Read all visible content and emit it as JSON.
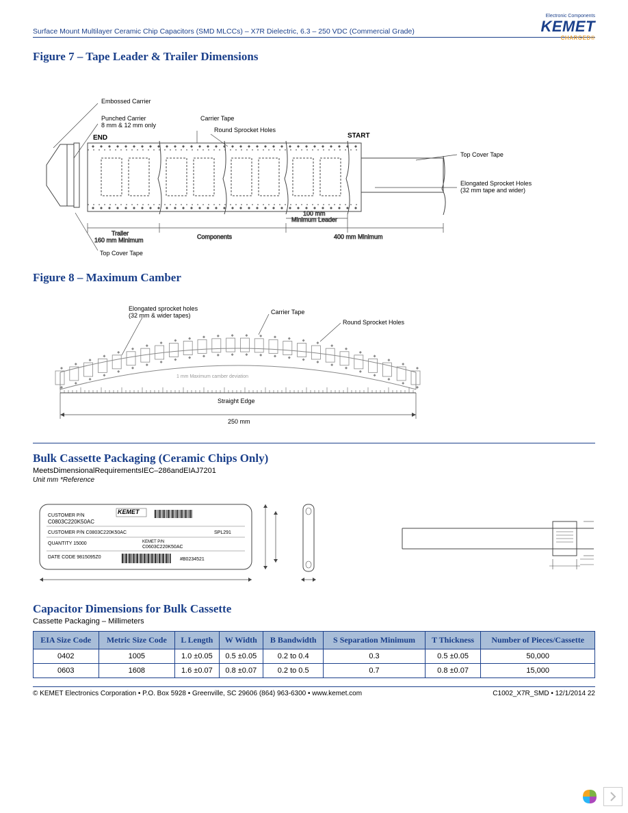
{
  "header": {
    "title": "Surface Mount Multilayer Ceramic Chip Capacitors (SMD MLCCs) – X7R Dielectric, 6.3 – 250 VDC (Commercial Grade)",
    "logo_tag": "Electronic Components",
    "logo_brand": "KEMET",
    "logo_sub": "CHARGED®"
  },
  "figure7": {
    "title": "Figure 7 – Tape Leader & Trailer Dimensions",
    "labels": {
      "embossed": "Embossed Carrier",
      "punched": "Punched Carrier\n8 mm & 12 mm only",
      "end": "END",
      "carrier_tape": "Carrier Tape",
      "round_sprocket": "Round Sprocket Holes",
      "start": "START",
      "top_cover": "Top Cover Tape",
      "elongated": "Elongated Sprocket Holes\n(32 mm tape and wider)",
      "trailer": "Trailer\n160 mm Minimum",
      "components": "Components",
      "leader100": "100 mm\nMinimum Leader",
      "leader400": "400 mm Minimum",
      "top_cover2": "Top Cover Tape"
    }
  },
  "figure8": {
    "title": "Figure 8 – Maximum Camber",
    "labels": {
      "elongated": "Elongated sprocket holes\n(32 mm & wider tapes)",
      "carrier": "Carrier Tape",
      "round": "Round Sprocket Holes",
      "camber": "1 mm Maximum camber deviation",
      "straight": "Straight Edge",
      "length": "250 mm"
    }
  },
  "bulk": {
    "title": "Bulk Cassette Packaging (Ceramic Chips Only)",
    "subtitle": "MeetsDimensionalRequirementsIEC–286andEIAJ7201",
    "unit": "Unit mm  *Reference",
    "cassette_labels": {
      "customer_pn": "CUSTOMER P/N",
      "pn1": "C0803C220K50AC",
      "cust_pn2": "CUSTOMER P/N C0803C220K50AC",
      "spl": "SPL291",
      "qty": "QUANTITY  15000",
      "kemet_pn_label": "KEMET P/N",
      "kemet_pn": "C0603C220K50AC",
      "date": "DATE CODE  9815095Z0",
      "lot": "#B0234521",
      "brand": "KEMET"
    }
  },
  "dims": {
    "title": "Capacitor Dimensions for Bulk Cassette",
    "subtitle": "Cassette Packaging – Millimeters",
    "columns": [
      "EIA Size Code",
      "Metric Size Code",
      "L Length",
      "W Width",
      "B Bandwidth",
      "S Separation Minimum",
      "T Thickness",
      "Number of Pieces/Cassette"
    ],
    "rows": [
      [
        "0402",
        "1005",
        "1.0 ±0.05",
        "0.5 ±0.05",
        "0.2 to 0.4",
        "0.3",
        "0.5 ±0.05",
        "50,000"
      ],
      [
        "0603",
        "1608",
        "1.6 ±0.07",
        "0.8 ±0.07",
        "0.2 to 0.5",
        "0.7",
        "0.8 ±0.07",
        "15,000"
      ]
    ]
  },
  "footer": {
    "left": "© KEMET Electronics Corporation • P.O. Box 5928 • Greenville, SC 29606 (864) 963-6300 • www.kemet.com",
    "right": "C1002_X7R_SMD • 12/1/2014  22"
  },
  "colors": {
    "brand_blue": "#1a3f8a",
    "brand_orange": "#e8a33d",
    "table_header_bg": "#a8bdd8"
  }
}
